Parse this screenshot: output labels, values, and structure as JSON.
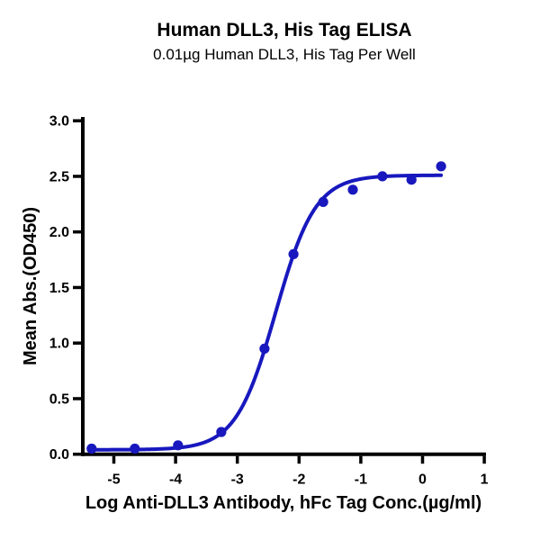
{
  "header": {
    "title": "Human DLL3, His Tag ELISA",
    "subtitle": "0.01µg Human DLL3, His Tag Per Well"
  },
  "chart_data": {
    "type": "scatter",
    "title": "Human DLL3, His Tag ELISA",
    "subtitle": "0.01µg Human DLL3, His Tag Per Well",
    "xlabel": "Log Anti-DLL3 Antibody, hFc Tag Conc.(µg/ml)",
    "ylabel": "Mean Abs.(OD450)",
    "x": [
      -5.36,
      -4.66,
      -3.96,
      -3.26,
      -2.56,
      -2.09,
      -1.61,
      -1.13,
      -0.65,
      -0.18,
      0.3
    ],
    "y": [
      0.05,
      0.05,
      0.08,
      0.2,
      0.95,
      1.8,
      2.27,
      2.38,
      2.5,
      2.47,
      2.59
    ],
    "fit_curve": {
      "model": "4PL-sigmoid",
      "bottom": 0.04,
      "top": 2.51,
      "logEC50": -2.38,
      "hillslope": 1.35
    },
    "xlim": [
      -5.54,
      1.03
    ],
    "ylim": [
      0.0,
      3.0
    ],
    "x_ticks": [
      -5,
      -4,
      -3,
      -2,
      -1,
      0,
      1
    ],
    "x_tick_labels": [
      "-5",
      "-4",
      "-3",
      "-2",
      "-1",
      "0",
      "1"
    ],
    "y_ticks": [
      0.0,
      0.5,
      1.0,
      1.5,
      2.0,
      2.5,
      3.0
    ],
    "y_tick_labels": [
      "0.0",
      "0.5",
      "1.0",
      "1.5",
      "2.0",
      "2.5",
      "3.0"
    ],
    "grid": false,
    "legend": "none",
    "colors": {
      "series": "#1818be",
      "axis": "#000000",
      "background": "#ffffff"
    }
  }
}
